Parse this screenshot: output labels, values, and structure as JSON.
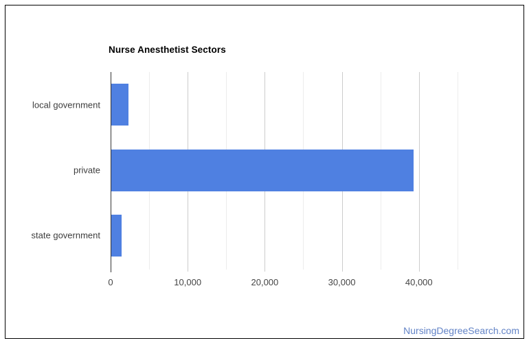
{
  "chart_data": {
    "type": "bar",
    "orientation": "horizontal",
    "title": "Nurse Anesthetist Sectors",
    "categories": [
      "local government",
      "private",
      "state government"
    ],
    "values": [
      2200,
      39200,
      1300
    ],
    "xlabel": "",
    "ylabel": "",
    "xlim": [
      0,
      46350
    ],
    "ticks": [
      0,
      10000,
      20000,
      30000,
      40000
    ],
    "tick_labels": [
      "0",
      "10,000",
      "20,000",
      "30,000",
      "40,000"
    ],
    "minor_grid_step": 5000,
    "major_grid_step": 10000,
    "grid": "vertical",
    "legend": "none"
  },
  "watermark": {
    "text": "NursingDegreeSearch.com"
  },
  "colors": {
    "bar": "#4f80e1",
    "title": "#000000",
    "category_label": "#3d3d3d",
    "tick_label": "#444444",
    "axis_line": "#333333",
    "gridline_major": "#cccccc",
    "gridline_minor": "#ececec",
    "watermark": "#6283c6",
    "frame_border": "#000000",
    "background": "#ffffff"
  }
}
